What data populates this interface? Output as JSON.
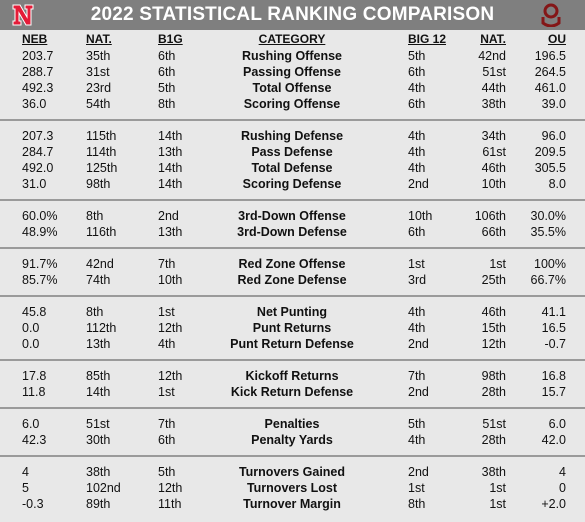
{
  "title": "2022 STATISTICAL RANKING COMPARISON",
  "colors": {
    "header_bg": "#7f7f7f",
    "neb_red": "#e41c38",
    "ou_crimson": "#841617"
  },
  "headers": {
    "neb": "NEB",
    "nat": "NAT.",
    "b1g": "B1G",
    "category": "CATEGORY",
    "big12": "BIG 12",
    "nat2": "NAT.",
    "ou": "OU"
  },
  "rows": [
    {
      "neb": "203.7",
      "nat": "35th",
      "b1g": "6th",
      "cat": "Rushing Offense",
      "big12": "5th",
      "nat2": "42nd",
      "ou": "196.5"
    },
    {
      "neb": "288.7",
      "nat": "31st",
      "b1g": "6th",
      "cat": "Passing Offense",
      "big12": "6th",
      "nat2": "51st",
      "ou": "264.5"
    },
    {
      "neb": "492.3",
      "nat": "23rd",
      "b1g": "5th",
      "cat": "Total Offense",
      "big12": "4th",
      "nat2": "44th",
      "ou": "461.0"
    },
    {
      "neb": "36.0",
      "nat": "54th",
      "b1g": "8th",
      "cat": "Scoring Offense",
      "big12": "6th",
      "nat2": "38th",
      "ou": "39.0"
    },
    {
      "neb": "207.3",
      "nat": "115th",
      "b1g": "14th",
      "cat": "Rushing Defense",
      "big12": "4th",
      "nat2": "34th",
      "ou": "96.0"
    },
    {
      "neb": "284.7",
      "nat": "114th",
      "b1g": "13th",
      "cat": "Pass Defense",
      "big12": "4th",
      "nat2": "61st",
      "ou": "209.5"
    },
    {
      "neb": "492.0",
      "nat": "125th",
      "b1g": "14th",
      "cat": "Total Defense",
      "big12": "4th",
      "nat2": "46th",
      "ou": "305.5"
    },
    {
      "neb": "31.0",
      "nat": "98th",
      "b1g": "14th",
      "cat": "Scoring Defense",
      "big12": "2nd",
      "nat2": "10th",
      "ou": "8.0"
    },
    {
      "neb": "60.0%",
      "nat": "8th",
      "b1g": "2nd",
      "cat": "3rd-Down Offense",
      "big12": "10th",
      "nat2": "106th",
      "ou": "30.0%"
    },
    {
      "neb": "48.9%",
      "nat": "116th",
      "b1g": "13th",
      "cat": "3rd-Down Defense",
      "big12": "6th",
      "nat2": "66th",
      "ou": "35.5%"
    },
    {
      "neb": "91.7%",
      "nat": "42nd",
      "b1g": "7th",
      "cat": "Red Zone Offense",
      "big12": "1st",
      "nat2": "1st",
      "ou": "100%"
    },
    {
      "neb": "85.7%",
      "nat": "74th",
      "b1g": "10th",
      "cat": "Red Zone Defense",
      "big12": "3rd",
      "nat2": "25th",
      "ou": "66.7%"
    },
    {
      "neb": "45.8",
      "nat": "8th",
      "b1g": "1st",
      "cat": "Net Punting",
      "big12": "4th",
      "nat2": "46th",
      "ou": "41.1"
    },
    {
      "neb": "0.0",
      "nat": "112th",
      "b1g": "12th",
      "cat": "Punt Returns",
      "big12": "4th",
      "nat2": "15th",
      "ou": "16.5"
    },
    {
      "neb": "0.0",
      "nat": "13th",
      "b1g": "4th",
      "cat": "Punt Return Defense",
      "big12": "2nd",
      "nat2": "12th",
      "ou": "-0.7"
    },
    {
      "neb": "17.8",
      "nat": "85th",
      "b1g": "12th",
      "cat": "Kickoff Returns",
      "big12": "7th",
      "nat2": "98th",
      "ou": "16.8"
    },
    {
      "neb": "11.8",
      "nat": "14th",
      "b1g": "1st",
      "cat": "Kick Return Defense",
      "big12": "2nd",
      "nat2": "28th",
      "ou": "15.7"
    },
    {
      "neb": "6.0",
      "nat": "51st",
      "b1g": "7th",
      "cat": "Penalties",
      "big12": "5th",
      "nat2": "51st",
      "ou": "6.0"
    },
    {
      "neb": "42.3",
      "nat": "30th",
      "b1g": "6th",
      "cat": "Penalty Yards",
      "big12": "4th",
      "nat2": "28th",
      "ou": "42.0"
    },
    {
      "neb": "4",
      "nat": "38th",
      "b1g": "5th",
      "cat": "Turnovers Gained",
      "big12": "2nd",
      "nat2": "38th",
      "ou": "4"
    },
    {
      "neb": "5",
      "nat": "102nd",
      "b1g": "12th",
      "cat": "Turnovers Lost",
      "big12": "1st",
      "nat2": "1st",
      "ou": "0"
    },
    {
      "neb": "-0.3",
      "nat": "89th",
      "b1g": "11th",
      "cat": "Turnover Margin",
      "big12": "8th",
      "nat2": "1st",
      "ou": "+2.0"
    }
  ]
}
